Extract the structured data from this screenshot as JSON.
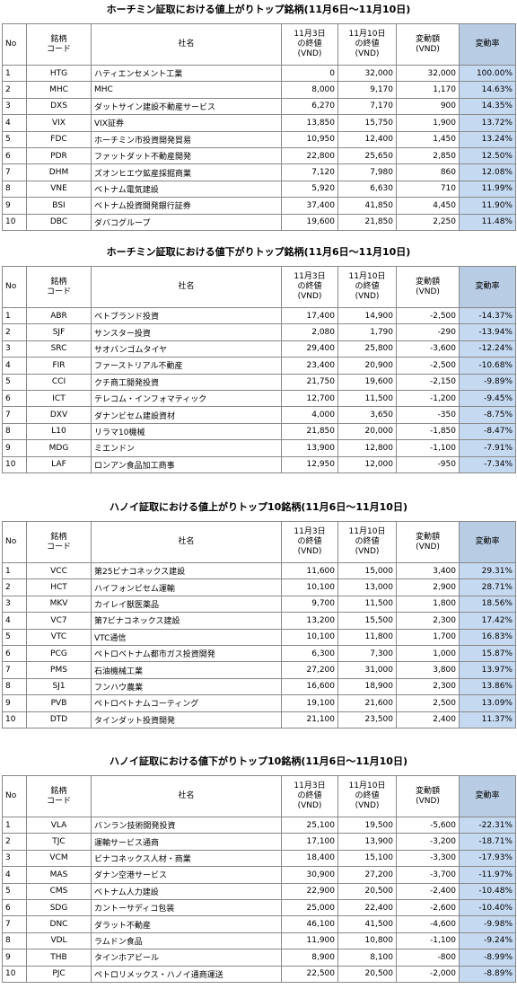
{
  "headers": [
    [
      "No"
    ],
    [
      "銘柄",
      "コード"
    ],
    [
      "社名"
    ],
    [
      "11月3日",
      "の終値",
      "(VND)"
    ],
    [
      "11月10日",
      "の終値",
      "(VND)"
    ],
    [
      "変動額",
      "(VND)"
    ],
    [
      "変動率"
    ]
  ],
  "tables": [
    {
      "title": "ホーチミン証取における値上がりトップ銘柄(11月6日～11月10日)",
      "rows": [
        [
          "1",
          "HTG",
          "ハティエンセメント工業",
          "0",
          "32,000",
          "32,000",
          "100.00%"
        ],
        [
          "2",
          "MHC",
          "MHC",
          "8,000",
          "9,170",
          "1,170",
          "14.63%"
        ],
        [
          "3",
          "DXS",
          "ダットサイン建設不動産サービス",
          "6,270",
          "7,170",
          "900",
          "14.35%"
        ],
        [
          "4",
          "VIX",
          "VIX証券",
          "13,850",
          "15,750",
          "1,900",
          "13.72%"
        ],
        [
          "5",
          "FDC",
          "ホーチミン市投資開発貿易",
          "10,950",
          "12,400",
          "1,450",
          "13.24%"
        ],
        [
          "6",
          "PDR",
          "ファットダット不動産開発",
          "22,800",
          "25,650",
          "2,850",
          "12.50%"
        ],
        [
          "7",
          "DHM",
          "ズオンヒエウ鉱産採掘商業",
          "7,120",
          "7,980",
          "860",
          "12.08%"
        ],
        [
          "8",
          "VNE",
          "ベトナム電気建設",
          "5,920",
          "6,630",
          "710",
          "11.99%"
        ],
        [
          "9",
          "BSI",
          "ベトナム投資開発銀行証券",
          "37,400",
          "41,850",
          "4,450",
          "11.90%"
        ],
        [
          "10",
          "DBC",
          "ダバコグループ",
          "19,600",
          "21,850",
          "2,250",
          "11.48%"
        ]
      ]
    },
    {
      "title": "ホーチミン証取における値下がりトップ銘柄(11月6日～11月10日)",
      "rows": [
        [
          "1",
          "ABR",
          "ベトブランド投資",
          "17,400",
          "14,900",
          "-2,500",
          "-14.37%"
        ],
        [
          "2",
          "SJF",
          "サンスター投資",
          "2,080",
          "1,790",
          "-290",
          "-13.94%"
        ],
        [
          "3",
          "SRC",
          "サオバンゴムタイヤ",
          "29,400",
          "25,800",
          "-3,600",
          "-12.24%"
        ],
        [
          "4",
          "FIR",
          "ファーストリアル不動産",
          "23,400",
          "20,900",
          "-2,500",
          "-10.68%"
        ],
        [
          "5",
          "CCI",
          "クチ商工開発投資",
          "21,750",
          "19,600",
          "-2,150",
          "-9.89%"
        ],
        [
          "6",
          "ICT",
          "テレコム・インフォマティック",
          "12,700",
          "11,500",
          "-1,200",
          "-9.45%"
        ],
        [
          "7",
          "DXV",
          "ダナンビセム建設資材",
          "4,000",
          "3,650",
          "-350",
          "-8.75%"
        ],
        [
          "8",
          "L10",
          "リラマ10機械",
          "21,850",
          "20,000",
          "-1,850",
          "-8.47%"
        ],
        [
          "9",
          "MDG",
          "ミエンドン",
          "13,900",
          "12,800",
          "-1,100",
          "-7.91%"
        ],
        [
          "10",
          "LAF",
          "ロンアン食品加工商事",
          "12,950",
          "12,000",
          "-950",
          "-7.34%"
        ]
      ]
    },
    {
      "title": "ハノイ証取における値上がりトップ10銘柄(11月6日～11月10日)",
      "rows": [
        [
          "1",
          "VCC",
          "第25ビナコネックス建設",
          "11,600",
          "15,000",
          "3,400",
          "29.31%"
        ],
        [
          "2",
          "HCT",
          "ハイフォンビセム運輸",
          "10,100",
          "13,000",
          "2,900",
          "28.71%"
        ],
        [
          "3",
          "MKV",
          "カイレイ獣医薬品",
          "9,700",
          "11,500",
          "1,800",
          "18.56%"
        ],
        [
          "4",
          "VC7",
          "第7ビナコネックス建設",
          "13,200",
          "15,500",
          "2,300",
          "17.42%"
        ],
        [
          "5",
          "VTC",
          "VTC通信",
          "10,100",
          "11,800",
          "1,700",
          "16.83%"
        ],
        [
          "6",
          "PCG",
          "ペトロベトナム都市ガス投資開発",
          "6,300",
          "7,300",
          "1,000",
          "15.87%"
        ],
        [
          "7",
          "PMS",
          "石油機械工業",
          "27,200",
          "31,000",
          "3,800",
          "13.97%"
        ],
        [
          "8",
          "SJ1",
          "フンハウ農業",
          "16,600",
          "18,900",
          "2,300",
          "13.86%"
        ],
        [
          "9",
          "PVB",
          "ペトロベトナムコーティング",
          "19,100",
          "21,600",
          "2,500",
          "13.09%"
        ],
        [
          "10",
          "DTD",
          "タインダット投資開発",
          "21,100",
          "23,500",
          "2,400",
          "11.37%"
        ]
      ]
    },
    {
      "title": "ハノイ証取における値下がりトップ10銘柄(11月6日～11月10日)",
      "rows": [
        [
          "1",
          "VLA",
          "バンラン技術開発投資",
          "25,100",
          "19,500",
          "-5,600",
          "-22.31%"
        ],
        [
          "2",
          "TJC",
          "運輸サービス通商",
          "17,100",
          "13,900",
          "-3,200",
          "-18.71%"
        ],
        [
          "3",
          "VCM",
          "ビナコネックス人材・商業",
          "18,400",
          "15,100",
          "-3,300",
          "-17.93%"
        ],
        [
          "4",
          "MAS",
          "ダナン空港サービス",
          "30,900",
          "27,200",
          "-3,700",
          "-11.97%"
        ],
        [
          "5",
          "CMS",
          "ベトナム人力建設",
          "22,900",
          "20,500",
          "-2,400",
          "-10.48%"
        ],
        [
          "6",
          "SDG",
          "カントーサディコ包装",
          "25,000",
          "22,400",
          "-2,600",
          "-10.40%"
        ],
        [
          "7",
          "DNC",
          "ダラット不動産",
          "46,100",
          "41,500",
          "-4,600",
          "-9.98%"
        ],
        [
          "8",
          "VDL",
          "ラムドン食品",
          "11,900",
          "10,800",
          "-1,100",
          "-9.24%"
        ],
        [
          "9",
          "THB",
          "タインホアビール",
          "8,900",
          "8,100",
          "-800",
          "-8.99%"
        ],
        [
          "10",
          "PJC",
          "ペトロリメックス・ハノイ通商運送",
          "22,500",
          "20,500",
          "-2,000",
          "-8.89%"
        ]
      ]
    }
  ]
}
